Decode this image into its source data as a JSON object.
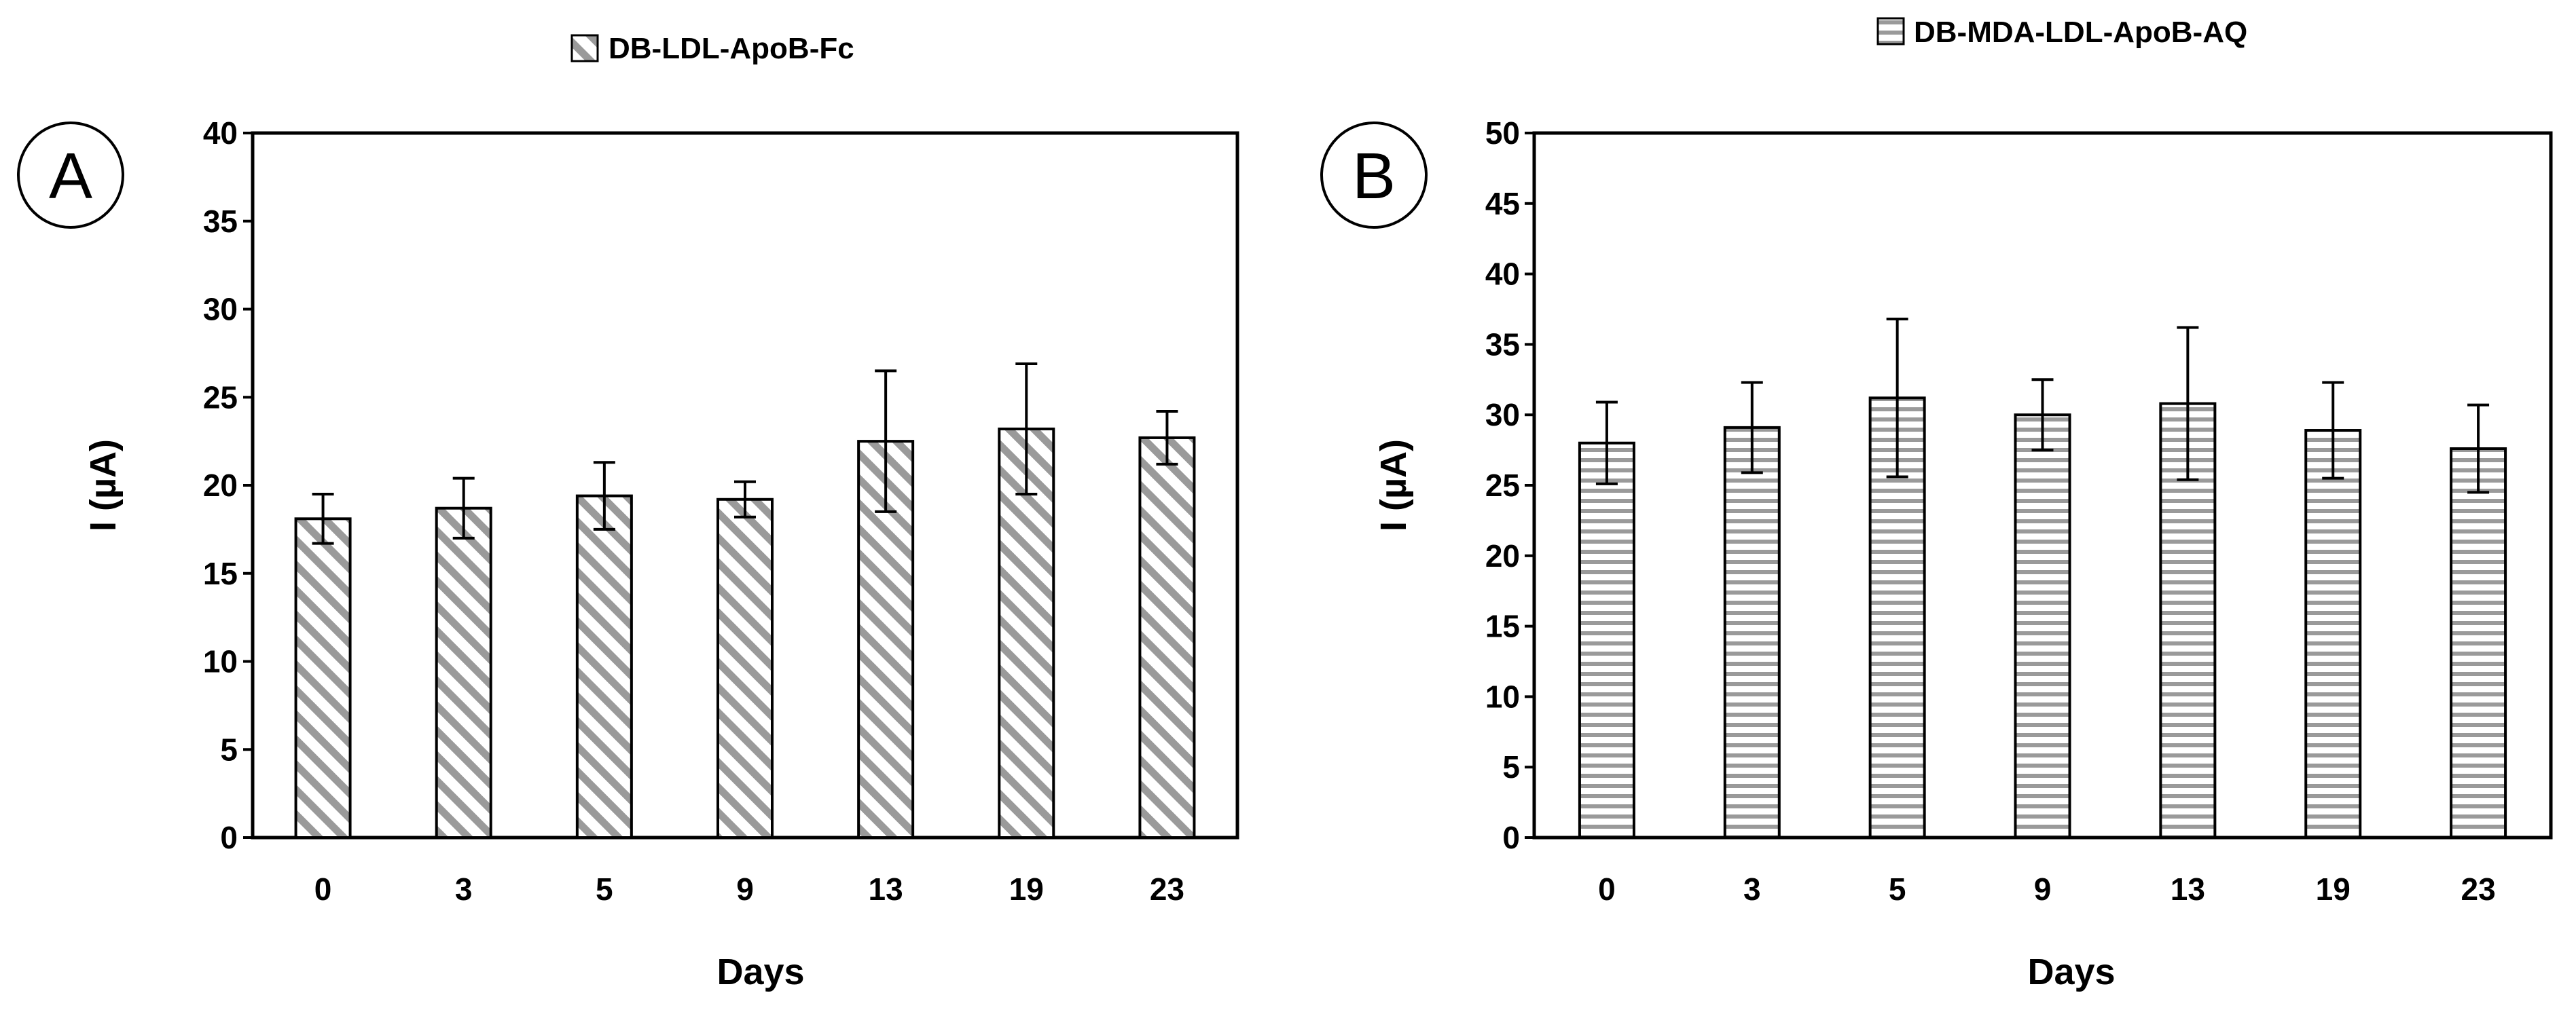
{
  "chart_data": [
    {
      "type": "bar",
      "panel_label": "A",
      "legend": "DB-LDL-ApoB-Fc",
      "pattern": "diagonal-hatch",
      "xlabel": "Days",
      "ylabel": "I (µA)",
      "ylim": [
        0,
        40
      ],
      "ytick_step": 5,
      "yticks": [
        "0",
        "5",
        "10",
        "15",
        "20",
        "25",
        "30",
        "35",
        "40"
      ],
      "categories": [
        "0",
        "3",
        "5",
        "9",
        "13",
        "19",
        "23"
      ],
      "values": [
        18.1,
        18.7,
        19.4,
        19.2,
        22.5,
        23.2,
        22.7
      ],
      "errors": [
        1.4,
        1.7,
        1.9,
        1.0,
        4.0,
        3.7,
        1.5
      ]
    },
    {
      "type": "bar",
      "panel_label": "B",
      "legend": "DB-MDA-LDL-ApoB-AQ",
      "pattern": "horizontal-hatch",
      "xlabel": "Days",
      "ylabel": "I (µA)",
      "ylim": [
        0,
        50
      ],
      "ytick_step": 5,
      "yticks": [
        "0",
        "5",
        "10",
        "15",
        "20",
        "25",
        "30",
        "35",
        "40",
        "45",
        "50"
      ],
      "categories": [
        "0",
        "3",
        "5",
        "9",
        "13",
        "19",
        "23"
      ],
      "values": [
        28.0,
        29.1,
        31.2,
        30.0,
        30.8,
        28.9,
        27.6
      ],
      "errors": [
        2.9,
        3.2,
        5.6,
        2.5,
        5.4,
        3.4,
        3.1
      ]
    }
  ]
}
